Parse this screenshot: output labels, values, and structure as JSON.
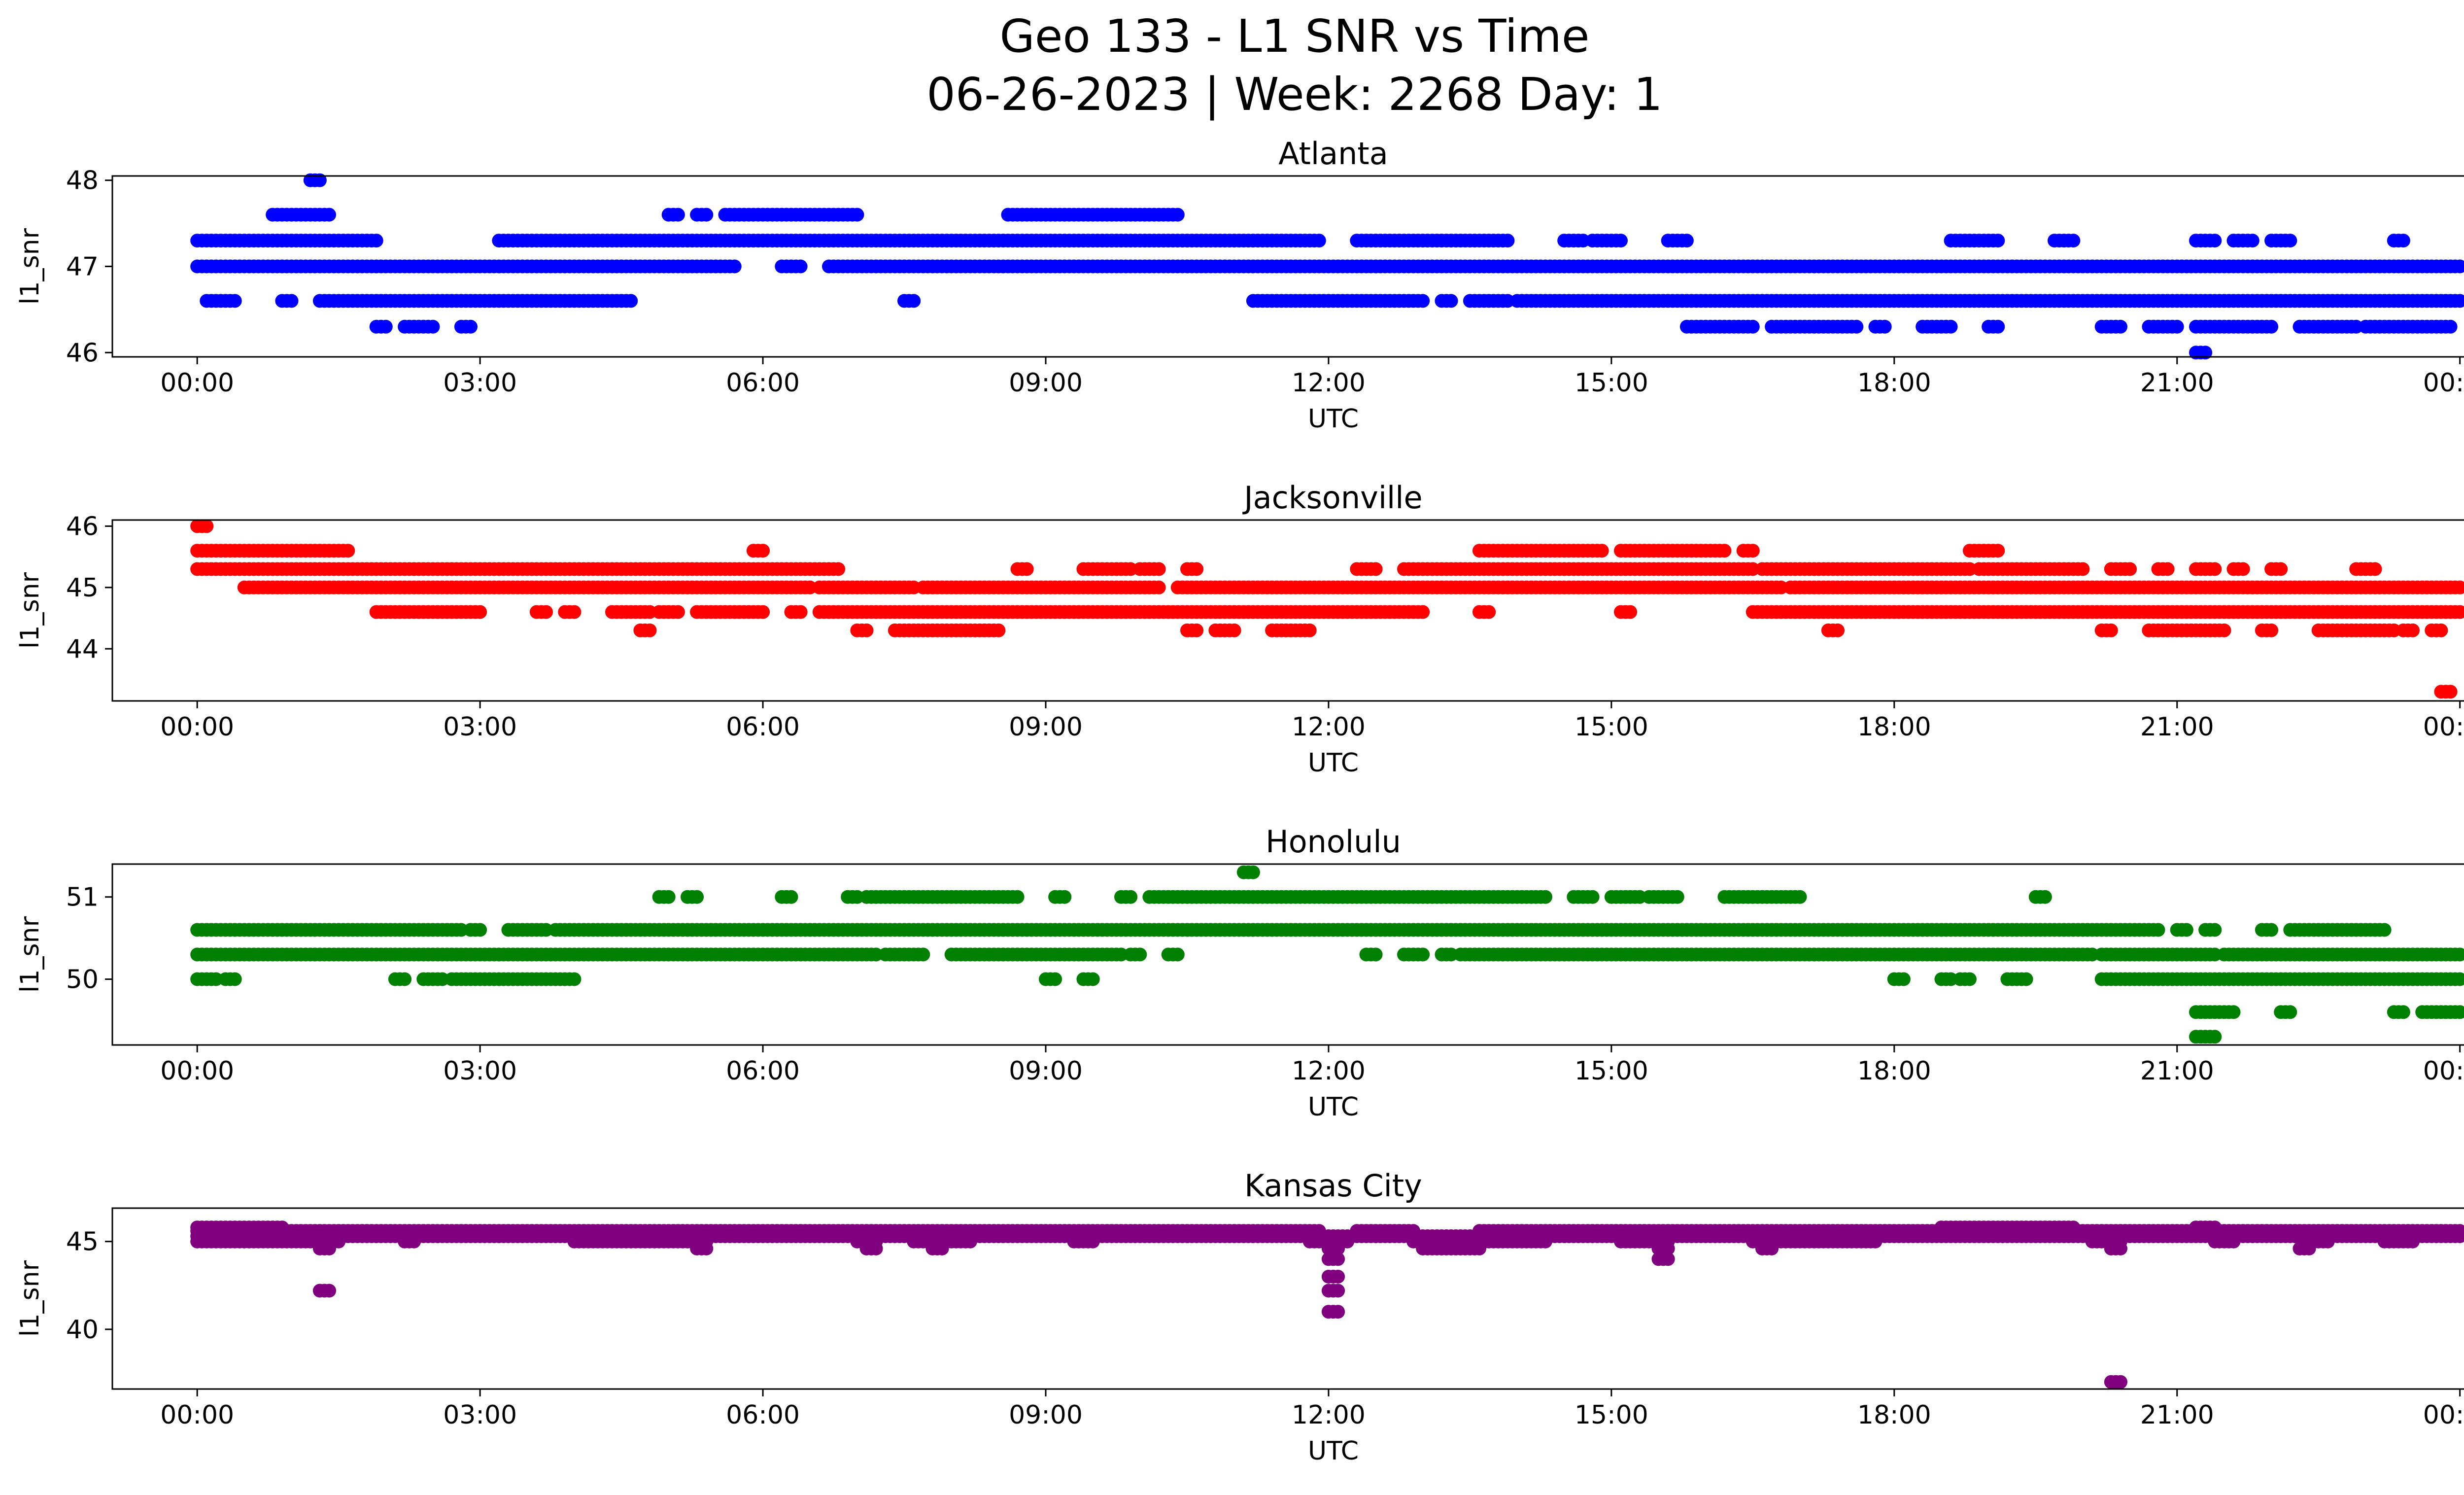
{
  "title": "Geo 133 - L1 SNR vs Time",
  "subtitle": "06-26-2023 | Week: 2268 Day: 1",
  "chart_data": [
    {
      "type": "scatter",
      "title": "Atlanta",
      "xlabel": "UTC",
      "ylabel": "l1_snr",
      "color": "#0000ff",
      "xlim": [
        -0.9,
        25.0
      ],
      "ylim": [
        45.95,
        48.05
      ],
      "xticks": [
        0,
        3,
        6,
        9,
        12,
        15,
        18,
        21,
        24
      ],
      "xtick_labels": [
        "00:00",
        "03:00",
        "06:00",
        "09:00",
        "12:00",
        "15:00",
        "18:00",
        "21:00",
        "00:00"
      ],
      "yticks": [
        46,
        47,
        48
      ],
      "ytick_labels": [
        "46",
        "47",
        "48"
      ],
      "series": [
        {
          "level": 47.0,
          "segments": [
            [
              0.0,
              5.7
            ],
            [
              6.2,
              6.4
            ],
            [
              6.7,
              24.0
            ]
          ]
        },
        {
          "level": 47.3,
          "segments": [
            [
              0.0,
              1.9
            ],
            [
              3.2,
              11.9
            ],
            [
              12.3,
              13.9
            ],
            [
              14.5,
              14.7
            ],
            [
              14.8,
              15.1
            ],
            [
              15.6,
              15.8
            ],
            [
              18.6,
              19.1
            ],
            [
              19.7,
              19.9
            ],
            [
              21.2,
              21.4
            ],
            [
              21.6,
              21.8
            ],
            [
              22.0,
              22.2
            ],
            [
              23.3,
              23.4
            ]
          ]
        },
        {
          "level": 46.6,
          "segments": [
            [
              0.1,
              0.4
            ],
            [
              0.9,
              1.0
            ],
            [
              1.3,
              4.6
            ],
            [
              7.5,
              7.6
            ],
            [
              11.2,
              13.0
            ],
            [
              13.2,
              13.3
            ],
            [
              13.5,
              13.9
            ],
            [
              14.0,
              24.0
            ]
          ]
        },
        {
          "level": 47.6,
          "segments": [
            [
              0.8,
              1.4
            ],
            [
              5.0,
              5.1
            ],
            [
              5.3,
              5.4
            ],
            [
              5.6,
              7.0
            ],
            [
              8.6,
              10.4
            ]
          ]
        },
        {
          "level": 46.3,
          "segments": [
            [
              1.9,
              2.0
            ],
            [
              2.2,
              2.5
            ],
            [
              2.8,
              2.9
            ],
            [
              15.8,
              16.5
            ],
            [
              16.7,
              17.6
            ],
            [
              17.8,
              17.9
            ],
            [
              18.3,
              18.6
            ],
            [
              19.0,
              19.1
            ],
            [
              20.2,
              20.4
            ],
            [
              20.7,
              21.0
            ],
            [
              21.2,
              22.0
            ],
            [
              22.3,
              22.9
            ],
            [
              23.0,
              23.9
            ]
          ]
        },
        {
          "level": 48.0,
          "segments": [
            [
              1.2,
              1.3
            ]
          ]
        },
        {
          "level": 46.0,
          "segments": [
            [
              21.2,
              21.3
            ]
          ]
        }
      ]
    },
    {
      "type": "scatter",
      "title": "Jacksonville",
      "xlabel": "UTC",
      "ylabel": "l1_snr",
      "color": "#ff0000",
      "xlim": [
        -0.9,
        25.0
      ],
      "ylim": [
        43.15,
        46.1
      ],
      "xticks": [
        0,
        3,
        6,
        9,
        12,
        15,
        18,
        21,
        24
      ],
      "xtick_labels": [
        "00:00",
        "03:00",
        "06:00",
        "09:00",
        "12:00",
        "15:00",
        "18:00",
        "21:00",
        "00:00"
      ],
      "yticks": [
        44,
        45,
        46
      ],
      "ytick_labels": [
        "44",
        "45",
        "46"
      ],
      "series": [
        {
          "level": 45.3,
          "segments": [
            [
              0.0,
              6.8
            ],
            [
              8.7,
              8.8
            ],
            [
              9.4,
              9.9
            ],
            [
              10.0,
              10.2
            ],
            [
              10.5,
              10.6
            ],
            [
              12.3,
              12.5
            ],
            [
              12.8,
              16.5
            ],
            [
              16.6,
              18.8
            ],
            [
              18.9,
              20.0
            ],
            [
              20.3,
              20.5
            ],
            [
              20.8,
              20.9
            ],
            [
              21.2,
              21.4
            ],
            [
              21.6,
              21.7
            ],
            [
              22.0,
              22.1
            ],
            [
              22.9,
              23.1
            ]
          ]
        },
        {
          "level": 45.0,
          "segments": [
            [
              0.5,
              6.5
            ],
            [
              6.6,
              7.6
            ],
            [
              7.7,
              10.2
            ],
            [
              10.4,
              16.8
            ],
            [
              16.9,
              24.0
            ]
          ]
        },
        {
          "level": 44.6,
          "segments": [
            [
              1.9,
              3.0
            ],
            [
              3.6,
              3.7
            ],
            [
              3.9,
              4.0
            ],
            [
              4.4,
              4.8
            ],
            [
              4.9,
              5.1
            ],
            [
              5.3,
              6.0
            ],
            [
              6.3,
              6.4
            ],
            [
              6.6,
              13.0
            ],
            [
              13.6,
              13.7
            ],
            [
              15.1,
              15.2
            ],
            [
              16.5,
              24.0
            ]
          ]
        },
        {
          "level": 45.6,
          "segments": [
            [
              0.0,
              1.6
            ],
            [
              5.9,
              6.0
            ],
            [
              13.6,
              14.9
            ],
            [
              15.1,
              16.2
            ],
            [
              16.4,
              16.5
            ],
            [
              18.8,
              19.1
            ]
          ]
        },
        {
          "level": 44.3,
          "segments": [
            [
              4.7,
              4.8
            ],
            [
              7.0,
              7.1
            ],
            [
              7.4,
              8.5
            ],
            [
              10.5,
              10.6
            ],
            [
              10.8,
              11.0
            ],
            [
              11.4,
              11.8
            ],
            [
              17.3,
              17.4
            ],
            [
              20.2,
              20.3
            ],
            [
              20.7,
              21.5
            ],
            [
              21.9,
              22.0
            ],
            [
              22.5,
              23.3
            ],
            [
              23.4,
              23.5
            ],
            [
              23.7,
              23.8
            ]
          ]
        },
        {
          "level": 46.0,
          "segments": [
            [
              0.0,
              0.1
            ]
          ]
        },
        {
          "level": 43.3,
          "segments": [
            [
              23.8,
              23.9
            ]
          ]
        }
      ]
    },
    {
      "type": "scatter",
      "title": "Honolulu",
      "xlabel": "UTC",
      "ylabel": "l1_snr",
      "color": "#008000",
      "xlim": [
        -0.9,
        25.0
      ],
      "ylim": [
        49.2,
        51.4
      ],
      "xticks": [
        0,
        3,
        6,
        9,
        12,
        15,
        18,
        21,
        24
      ],
      "xtick_labels": [
        "00:00",
        "03:00",
        "06:00",
        "09:00",
        "12:00",
        "15:00",
        "18:00",
        "21:00",
        "00:00"
      ],
      "yticks": [
        50,
        51
      ],
      "ytick_labels": [
        "50",
        "51"
      ],
      "series": [
        {
          "level": 50.6,
          "segments": [
            [
              0.0,
              2.8
            ],
            [
              2.9,
              3.0
            ],
            [
              3.3,
              3.7
            ],
            [
              3.8,
              20.8
            ],
            [
              21.0,
              21.1
            ],
            [
              21.3,
              21.4
            ],
            [
              21.9,
              22.0
            ],
            [
              22.2,
              23.2
            ]
          ]
        },
        {
          "level": 50.3,
          "segments": [
            [
              0.0,
              7.2
            ],
            [
              7.3,
              7.7
            ],
            [
              8.0,
              9.8
            ],
            [
              9.9,
              10.0
            ],
            [
              10.3,
              10.4
            ],
            [
              12.4,
              12.5
            ],
            [
              12.8,
              13.0
            ],
            [
              13.2,
              13.3
            ],
            [
              13.4,
              20.1
            ],
            [
              20.2,
              21.4
            ],
            [
              21.5,
              24.0
            ]
          ]
        },
        {
          "level": 50.0,
          "segments": [
            [
              0.0,
              0.2
            ],
            [
              0.3,
              0.4
            ],
            [
              2.1,
              2.2
            ],
            [
              2.4,
              2.6
            ],
            [
              2.7,
              4.0
            ],
            [
              9.0,
              9.1
            ],
            [
              9.4,
              9.5
            ],
            [
              18.0,
              18.1
            ],
            [
              18.5,
              18.6
            ],
            [
              18.7,
              18.8
            ],
            [
              19.2,
              19.4
            ],
            [
              20.2,
              24.0
            ]
          ]
        },
        {
          "level": 51.0,
          "segments": [
            [
              4.9,
              5.0
            ],
            [
              5.2,
              5.3
            ],
            [
              6.2,
              6.3
            ],
            [
              6.9,
              7.0
            ],
            [
              7.1,
              8.7
            ],
            [
              9.1,
              9.2
            ],
            [
              9.8,
              9.9
            ],
            [
              10.1,
              14.3
            ],
            [
              14.6,
              14.8
            ],
            [
              15.0,
              15.3
            ],
            [
              15.4,
              15.7
            ],
            [
              16.2,
              17.0
            ],
            [
              19.5,
              19.6
            ]
          ]
        },
        {
          "level": 49.6,
          "segments": [
            [
              21.2,
              21.6
            ],
            [
              22.1,
              22.2
            ],
            [
              23.3,
              23.4
            ],
            [
              23.6,
              24.0
            ]
          ]
        },
        {
          "level": 51.3,
          "segments": [
            [
              11.1,
              11.2
            ]
          ]
        },
        {
          "level": 49.3,
          "segments": [
            [
              21.2,
              21.4
            ]
          ]
        }
      ]
    },
    {
      "type": "scatter",
      "title": "Kansas City",
      "xlabel": "UTC",
      "ylabel": "l1_snr",
      "color": "#800080",
      "xlim": [
        -0.9,
        25.0
      ],
      "ylim": [
        36.6,
        46.9
      ],
      "xticks": [
        0,
        3,
        6,
        9,
        12,
        15,
        18,
        21,
        24
      ],
      "xtick_labels": [
        "00:00",
        "03:00",
        "06:00",
        "09:00",
        "12:00",
        "15:00",
        "18:00",
        "21:00",
        "00:00"
      ],
      "yticks": [
        40,
        45
      ],
      "ytick_labels": [
        "40",
        "45"
      ],
      "series": [
        {
          "level": 45.3,
          "segments": [
            [
              0.0,
              24.0
            ]
          ]
        },
        {
          "level": 45.8,
          "segments": [
            [
              0.0,
              0.9
            ],
            [
              18.5,
              19.9
            ],
            [
              21.2,
              21.4
            ]
          ]
        },
        {
          "level": 45.6,
          "segments": [
            [
              0.0,
              11.9
            ],
            [
              12.3,
              12.9
            ],
            [
              13.6,
              24.0
            ]
          ]
        },
        {
          "level": 45.0,
          "segments": [
            [
              0.0,
              1.5
            ],
            [
              2.2,
              2.3
            ],
            [
              4.0,
              5.4
            ],
            [
              7.0,
              7.2
            ],
            [
              7.6,
              8.2
            ],
            [
              9.3,
              9.5
            ],
            [
              11.8,
              12.2
            ],
            [
              12.9,
              14.3
            ],
            [
              15.1,
              15.6
            ],
            [
              16.5,
              17.8
            ],
            [
              20.1,
              20.4
            ],
            [
              21.4,
              21.6
            ],
            [
              22.4,
              22.6
            ],
            [
              23.2,
              23.5
            ]
          ]
        },
        {
          "level": 44.6,
          "segments": [
            [
              1.3,
              1.4
            ],
            [
              5.3,
              5.4
            ],
            [
              7.1,
              7.2
            ],
            [
              7.8,
              7.9
            ],
            [
              12.0,
              12.1
            ],
            [
              13.0,
              13.6
            ],
            [
              15.5,
              15.6
            ],
            [
              16.6,
              16.7
            ],
            [
              20.3,
              20.4
            ],
            [
              22.3,
              22.4
            ]
          ]
        },
        {
          "level": 44.0,
          "segments": [
            [
              12.0,
              12.1
            ],
            [
              15.5,
              15.6
            ]
          ]
        },
        {
          "level": 43.0,
          "segments": [
            [
              12.0,
              12.1
            ]
          ]
        },
        {
          "level": 42.2,
          "segments": [
            [
              1.3,
              1.4
            ],
            [
              12.0,
              12.1
            ]
          ]
        },
        {
          "level": 41.0,
          "segments": [
            [
              12.0,
              12.1
            ]
          ]
        },
        {
          "level": 37.0,
          "segments": [
            [
              20.3,
              20.4
            ]
          ]
        }
      ]
    }
  ]
}
